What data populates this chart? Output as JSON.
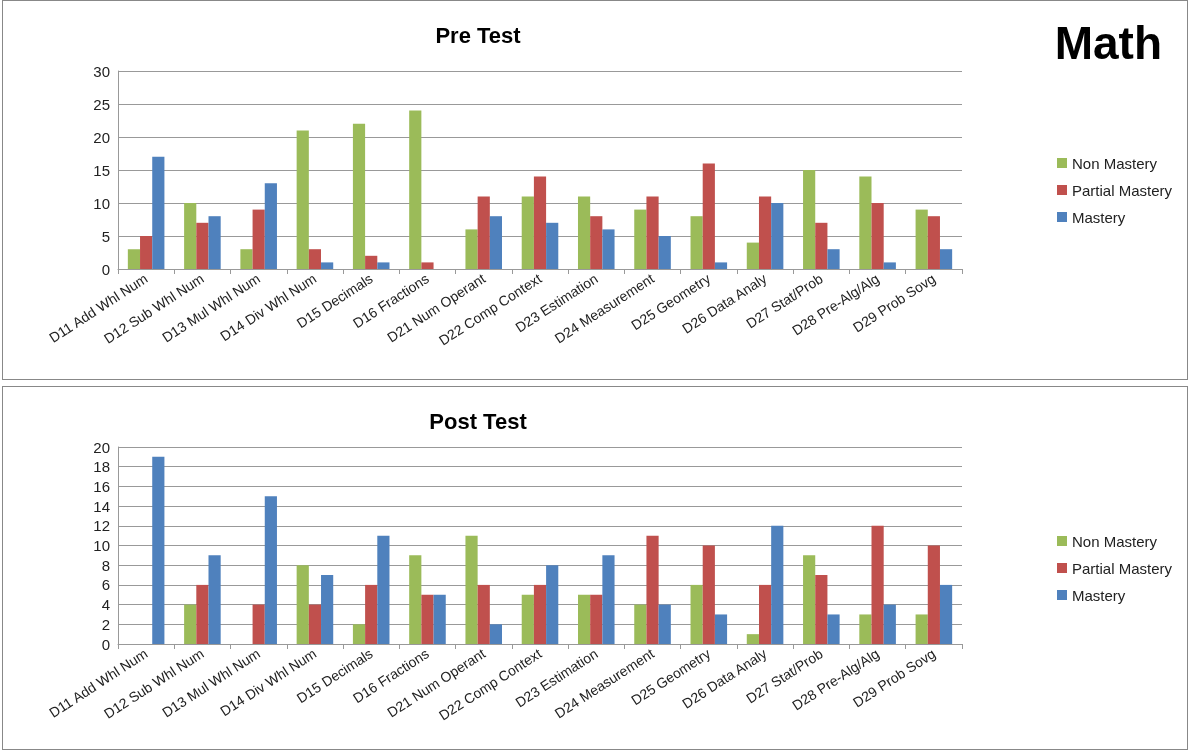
{
  "chart_data": [
    {
      "type": "bar",
      "title": "Pre Test",
      "annotations": [
        "Math"
      ],
      "categories": [
        "D11 Add Whl Num",
        "D12 Sub Whl Num",
        "D13 Mul Whl Num",
        "D14 Div Whl Num",
        "D15 Decimals",
        "D16 Fractions",
        "D21 Num Operant",
        "D22 Comp Context",
        "D23 Estimation",
        "D24 Measurement",
        "D25 Geometry",
        "D26 Data Analy",
        "D27 Stat/Prob",
        "D28 Pre-Alg/Alg",
        "D29 Prob Sovg"
      ],
      "series": [
        {
          "name": "Non Mastery",
          "color": "#9bbb59",
          "values": [
            3,
            10,
            3,
            21,
            22,
            24,
            6,
            11,
            11,
            9,
            8,
            4,
            15,
            14,
            9
          ]
        },
        {
          "name": "Partial Mastery",
          "color": "#c0504d",
          "values": [
            5,
            7,
            9,
            3,
            2,
            1,
            11,
            14,
            8,
            11,
            16,
            11,
            7,
            10,
            8
          ]
        },
        {
          "name": "Mastery",
          "color": "#4f81bd",
          "values": [
            17,
            8,
            13,
            1,
            1,
            0,
            8,
            7,
            6,
            5,
            1,
            10,
            3,
            1,
            3
          ]
        }
      ],
      "ylim": [
        0,
        30
      ],
      "yticks": [
        0,
        5,
        10,
        15,
        20,
        25,
        30
      ],
      "grid": "y",
      "legend": "right"
    },
    {
      "type": "bar",
      "title": "Post Test",
      "categories": [
        "D11 Add Whl Num",
        "D12 Sub Whl Num",
        "D13 Mul Whl Num",
        "D14 Div Whl Num",
        "D15 Decimals",
        "D16 Fractions",
        "D21 Num Operant",
        "D22 Comp Context",
        "D23 Estimation",
        "D24 Measurement",
        "D25 Geometry",
        "D26 Data Analy",
        "D27 Stat/Prob",
        "D28 Pre-Alg/Alg",
        "D29 Prob Sovg"
      ],
      "series": [
        {
          "name": "Non Mastery",
          "color": "#9bbb59",
          "values": [
            0,
            4,
            0,
            8,
            2,
            9,
            11,
            5,
            5,
            4,
            6,
            1,
            9,
            3,
            3
          ]
        },
        {
          "name": "Partial Mastery",
          "color": "#c0504d",
          "values": [
            0,
            6,
            4,
            4,
            6,
            5,
            6,
            6,
            5,
            11,
            10,
            6,
            7,
            12,
            10
          ]
        },
        {
          "name": "Mastery",
          "color": "#4f81bd",
          "values": [
            19,
            9,
            15,
            7,
            11,
            5,
            2,
            8,
            9,
            4,
            3,
            12,
            3,
            4,
            6
          ]
        }
      ],
      "ylim": [
        0,
        20
      ],
      "yticks": [
        0,
        2,
        4,
        6,
        8,
        10,
        12,
        14,
        16,
        18,
        20
      ],
      "grid": "y",
      "legend": "right"
    }
  ]
}
